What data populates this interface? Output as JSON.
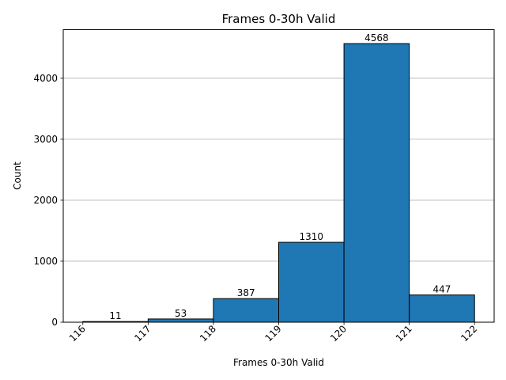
{
  "chart_data": {
    "type": "bar",
    "title": "Frames 0-30h Valid",
    "xlabel": "Frames 0-30h Valid",
    "ylabel": "Count",
    "bin_edges": [
      116,
      117,
      118,
      119,
      120,
      121,
      122
    ],
    "values": [
      11,
      53,
      387,
      1310,
      4568,
      447
    ],
    "xlim": [
      115.7,
      122.3
    ],
    "ylim": [
      0,
      4796
    ],
    "yticks": [
      0,
      1000,
      2000,
      3000,
      4000
    ],
    "xticks": [
      116,
      117,
      118,
      119,
      120,
      121,
      122
    ],
    "grid": "y",
    "bar_color": "#1f77b4",
    "edge_color": "#000000",
    "grid_color": "#b0b0b0"
  }
}
